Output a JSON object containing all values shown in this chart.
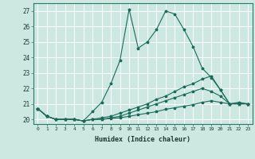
{
  "title": "",
  "xlabel": "Humidex (Indice chaleur)",
  "bg_color": "#cde8e0",
  "line_color": "#1a6b5a",
  "grid_color": "#ffffff",
  "xlim": [
    -0.5,
    23.5
  ],
  "ylim": [
    19.7,
    27.5
  ],
  "yticks": [
    20,
    21,
    22,
    23,
    24,
    25,
    26,
    27
  ],
  "xticks": [
    0,
    1,
    2,
    3,
    4,
    5,
    6,
    7,
    8,
    9,
    10,
    11,
    12,
    13,
    14,
    15,
    16,
    17,
    18,
    19,
    20,
    21,
    22,
    23
  ],
  "lines": [
    {
      "x": [
        0,
        1,
        2,
        3,
        4,
        5,
        6,
        7,
        8,
        9,
        10,
        11,
        12,
        13,
        14,
        15,
        16,
        17,
        18,
        19,
        20,
        21,
        22,
        23
      ],
      "y": [
        20.7,
        20.2,
        20.0,
        20.0,
        20.0,
        19.9,
        20.5,
        21.1,
        22.3,
        23.8,
        27.1,
        24.6,
        25.0,
        25.8,
        27.0,
        26.8,
        25.8,
        24.7,
        23.3,
        22.7,
        21.9,
        21.0,
        21.1,
        21.0
      ]
    },
    {
      "x": [
        0,
        1,
        2,
        3,
        4,
        5,
        6,
        7,
        8,
        9,
        10,
        11,
        12,
        13,
        14,
        15,
        16,
        17,
        18,
        19,
        20,
        21,
        22,
        23
      ],
      "y": [
        20.7,
        20.2,
        20.0,
        20.0,
        20.0,
        19.9,
        20.0,
        20.1,
        20.2,
        20.4,
        20.6,
        20.8,
        21.0,
        21.3,
        21.5,
        21.8,
        22.1,
        22.3,
        22.6,
        22.8,
        21.9,
        21.0,
        21.0,
        21.0
      ]
    },
    {
      "x": [
        0,
        1,
        2,
        3,
        4,
        5,
        6,
        7,
        8,
        9,
        10,
        11,
        12,
        13,
        14,
        15,
        16,
        17,
        18,
        19,
        20,
        21,
        22,
        23
      ],
      "y": [
        20.7,
        20.2,
        20.0,
        20.0,
        20.0,
        19.9,
        20.0,
        20.0,
        20.1,
        20.2,
        20.4,
        20.6,
        20.8,
        21.0,
        21.2,
        21.4,
        21.6,
        21.8,
        22.0,
        21.8,
        21.5,
        21.0,
        21.0,
        21.0
      ]
    },
    {
      "x": [
        0,
        1,
        2,
        3,
        4,
        5,
        6,
        7,
        8,
        9,
        10,
        11,
        12,
        13,
        14,
        15,
        16,
        17,
        18,
        19,
        20,
        21,
        22,
        23
      ],
      "y": [
        20.7,
        20.2,
        20.0,
        20.0,
        20.0,
        19.9,
        20.0,
        20.0,
        20.05,
        20.1,
        20.2,
        20.3,
        20.4,
        20.5,
        20.65,
        20.75,
        20.85,
        20.95,
        21.1,
        21.2,
        21.1,
        21.0,
        21.05,
        21.0
      ]
    }
  ]
}
